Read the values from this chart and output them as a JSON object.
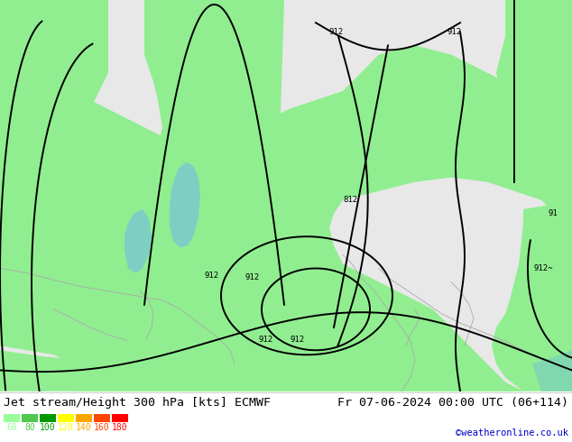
{
  "title_left": "Jet stream/Height 300 hPa [kts] ECMWF",
  "title_right": "Fr 07-06-2024 00:00 UTC (06+114)",
  "copyright": "©weatheronline.co.uk",
  "legend_values": [
    "60",
    "80",
    "100",
    "120",
    "140",
    "160",
    "180"
  ],
  "legend_colors": [
    "#98ff98",
    "#50c850",
    "#009900",
    "#ffff00",
    "#ffa500",
    "#ff4500",
    "#ff0000"
  ],
  "land_color_main": "#90ee90",
  "land_color_gray": "#c8c8c8",
  "sea_color": "#e8e8e8",
  "map_green": "#90ee90",
  "teal_color": "#7ecec4",
  "teal_light": "#a8ddd8",
  "bottom_teal": "#80d8b0",
  "contour_color": "#000000",
  "gray_line_color": "#aaaaaa",
  "copyright_color": "#0000cc",
  "figsize": [
    6.34,
    4.9
  ],
  "dpi": 100,
  "title_fontsize": 9.5,
  "label_fontsize": 6.5
}
